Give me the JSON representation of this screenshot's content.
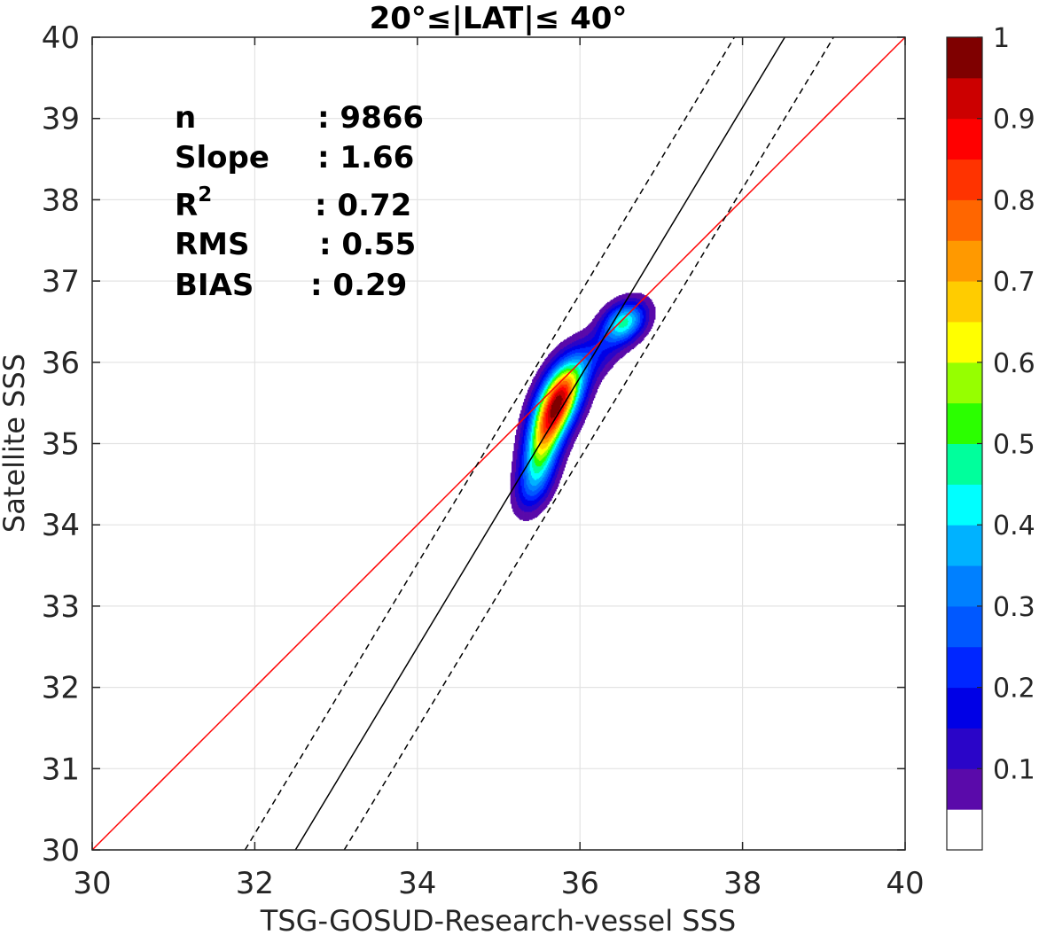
{
  "chart_data": {
    "type": "contour",
    "title": "20°≤|LAT|≤ 40°",
    "xlabel": "TSG-GOSUD-Research-vessel SSS",
    "ylabel": "Satellite SSS",
    "xlim": [
      30,
      40
    ],
    "ylim": [
      30,
      40
    ],
    "xticks": [
      30,
      32,
      34,
      36,
      38,
      40
    ],
    "yticks": [
      30,
      31,
      32,
      33,
      34,
      35,
      36,
      37,
      38,
      39,
      40
    ],
    "grid": true,
    "statistics": [
      {
        "label": "n",
        "value": ": 9866"
      },
      {
        "label": "Slope",
        "value": ": 1.66"
      },
      {
        "label": "R",
        "superscript": "2",
        "value": ": 0.72"
      },
      {
        "label": "RMS",
        "value": ": 0.55"
      },
      {
        "label": "BIAS",
        "value": ": 0.29"
      }
    ],
    "lines": [
      {
        "kind": "one-to-one",
        "color": "#ff0000",
        "points": [
          [
            30,
            30
          ],
          [
            40,
            40
          ]
        ]
      },
      {
        "kind": "regression",
        "color": "#000000",
        "dash": "solid",
        "points": [
          [
            32.5,
            30
          ],
          [
            38.52,
            40
          ]
        ]
      },
      {
        "kind": "regression-upper",
        "color": "#000000",
        "dash": "dashed",
        "points": [
          [
            31.88,
            30
          ],
          [
            37.9,
            40
          ]
        ]
      },
      {
        "kind": "regression-lower",
        "color": "#000000",
        "dash": "dashed",
        "points": [
          [
            33.1,
            30
          ],
          [
            39.12,
            40
          ]
        ]
      }
    ],
    "density_peaks": [
      {
        "x": 35.75,
        "y": 35.55,
        "sx": 0.2,
        "sy": 0.32,
        "rho": 0.5,
        "amp": 1.0
      },
      {
        "x": 35.55,
        "y": 35.0,
        "sx": 0.17,
        "sy": 0.32,
        "rho": 0.45,
        "amp": 0.55
      },
      {
        "x": 35.45,
        "y": 34.5,
        "sx": 0.16,
        "sy": 0.25,
        "rho": 0.4,
        "amp": 0.25
      },
      {
        "x": 36.55,
        "y": 36.5,
        "sx": 0.18,
        "sy": 0.17,
        "rho": 0.3,
        "amp": 0.5
      },
      {
        "x": 36.2,
        "y": 36.1,
        "sx": 0.25,
        "sy": 0.25,
        "rho": 0.6,
        "amp": 0.18
      }
    ],
    "colorbar": {
      "ticks": [
        "0.1",
        "0.2",
        "0.3",
        "0.4",
        "0.5",
        "0.6",
        "0.7",
        "0.8",
        "0.9",
        "1"
      ],
      "tick_values": [
        0.1,
        0.2,
        0.3,
        0.4,
        0.5,
        0.6,
        0.7,
        0.8,
        0.9,
        1.0
      ],
      "range": [
        0,
        1
      ],
      "levels": [
        0.05,
        0.1,
        0.15,
        0.2,
        0.25,
        0.3,
        0.35,
        0.4,
        0.45,
        0.5,
        0.55,
        0.6,
        0.65,
        0.7,
        0.75,
        0.8,
        0.85,
        0.9,
        0.95
      ],
      "colors": [
        "#ffffff",
        "#5a0aaa",
        "#2a05c8",
        "#0000e6",
        "#0026ff",
        "#0058ff",
        "#0080ff",
        "#00b2ff",
        "#00ffff",
        "#00ff9c",
        "#2bff00",
        "#96ff00",
        "#ffff00",
        "#ffcc00",
        "#ff9900",
        "#ff6600",
        "#ff3300",
        "#ff0000",
        "#cc0000",
        "#7f0000"
      ]
    }
  }
}
